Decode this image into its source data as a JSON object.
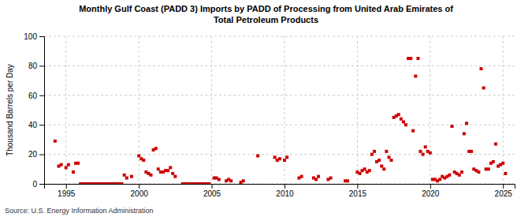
{
  "chart_data": {
    "type": "scatter",
    "title": "Monthly Gulf Coast (PADD 3) Imports by PADD of Processing from United Arab Emirates of\nTotal Petroleum Products",
    "ylabel": "Thousand Barrels per Day",
    "source": "Source: U.S. Energy Information Administration",
    "color": "#cc0000",
    "marker": "square",
    "grid": true,
    "xlim": [
      1993.5,
      2025.8
    ],
    "ylim": [
      0,
      100
    ],
    "xticks": [
      1995,
      2000,
      2005,
      2010,
      2015,
      2020,
      2025
    ],
    "yticks": [
      0,
      20,
      40,
      60,
      80,
      100
    ],
    "x": [
      1994.25,
      1994.5,
      1994.67,
      1995.0,
      1995.17,
      1995.5,
      1995.67,
      1995.83,
      1996.0,
      1996.17,
      1996.33,
      1996.5,
      1996.67,
      1996.83,
      1997.0,
      1997.17,
      1997.33,
      1997.5,
      1997.67,
      1997.83,
      1998.0,
      1998.17,
      1998.33,
      1998.5,
      1998.67,
      1998.83,
      1999.0,
      1999.17,
      1999.5,
      2000.0,
      2000.17,
      2000.33,
      2000.5,
      2000.67,
      2000.83,
      2001.0,
      2001.17,
      2001.33,
      2001.5,
      2001.67,
      2001.83,
      2002.0,
      2002.17,
      2002.33,
      2002.5,
      2003.0,
      2003.17,
      2003.33,
      2003.5,
      2003.67,
      2003.83,
      2004.0,
      2004.17,
      2004.33,
      2004.5,
      2004.67,
      2004.83,
      2005.17,
      2005.33,
      2005.5,
      2006.0,
      2006.17,
      2006.33,
      2007.0,
      2007.17,
      2008.17,
      2009.33,
      2009.5,
      2009.67,
      2010.0,
      2010.17,
      2011.0,
      2011.17,
      2012.0,
      2012.17,
      2012.33,
      2013.0,
      2013.17,
      2014.17,
      2014.33,
      2015.0,
      2015.17,
      2015.33,
      2015.5,
      2015.67,
      2015.83,
      2016.0,
      2016.17,
      2016.33,
      2016.5,
      2016.67,
      2016.83,
      2017.0,
      2017.17,
      2017.33,
      2017.5,
      2017.67,
      2017.83,
      2018.0,
      2018.17,
      2018.33,
      2018.5,
      2018.67,
      2018.83,
      2019.0,
      2019.17,
      2019.33,
      2019.5,
      2019.67,
      2019.83,
      2020.0,
      2020.17,
      2020.33,
      2020.5,
      2020.67,
      2020.83,
      2021.0,
      2021.17,
      2021.33,
      2021.5,
      2021.67,
      2021.83,
      2022.0,
      2022.17,
      2022.33,
      2022.5,
      2022.67,
      2022.83,
      2023.0,
      2023.17,
      2023.33,
      2023.5,
      2023.67,
      2023.83,
      2024.0,
      2024.17,
      2024.33,
      2024.5,
      2024.67,
      2024.83,
      2025.0,
      2025.17
    ],
    "values": [
      29,
      12,
      13,
      11,
      13,
      8,
      14,
      14,
      0,
      0,
      0,
      0,
      0,
      0,
      0,
      0,
      0,
      0,
      0,
      0,
      0,
      0,
      0,
      0,
      0,
      0,
      6,
      4,
      5,
      19,
      17,
      16,
      8,
      7,
      6,
      23,
      24,
      10,
      8,
      8,
      9,
      9,
      11,
      7,
      5,
      0,
      0,
      0,
      0,
      0,
      0,
      0,
      0,
      0,
      0,
      0,
      0,
      4,
      4,
      3,
      2,
      3,
      2,
      1,
      2,
      19,
      18,
      16,
      17,
      16,
      18,
      4,
      5,
      4,
      3,
      5,
      3,
      4,
      2,
      2,
      8,
      7,
      9,
      10,
      8,
      9,
      20,
      22,
      15,
      16,
      12,
      10,
      22,
      18,
      16,
      45,
      46,
      47,
      44,
      42,
      40,
      85,
      85,
      36,
      73,
      85,
      22,
      20,
      25,
      22,
      21,
      3,
      3,
      2,
      3,
      5,
      4,
      5,
      6,
      39,
      8,
      7,
      6,
      8,
      34,
      41,
      22,
      22,
      10,
      9,
      8,
      78,
      65,
      10,
      10,
      14,
      15,
      27,
      12,
      13,
      14,
      7
    ]
  }
}
